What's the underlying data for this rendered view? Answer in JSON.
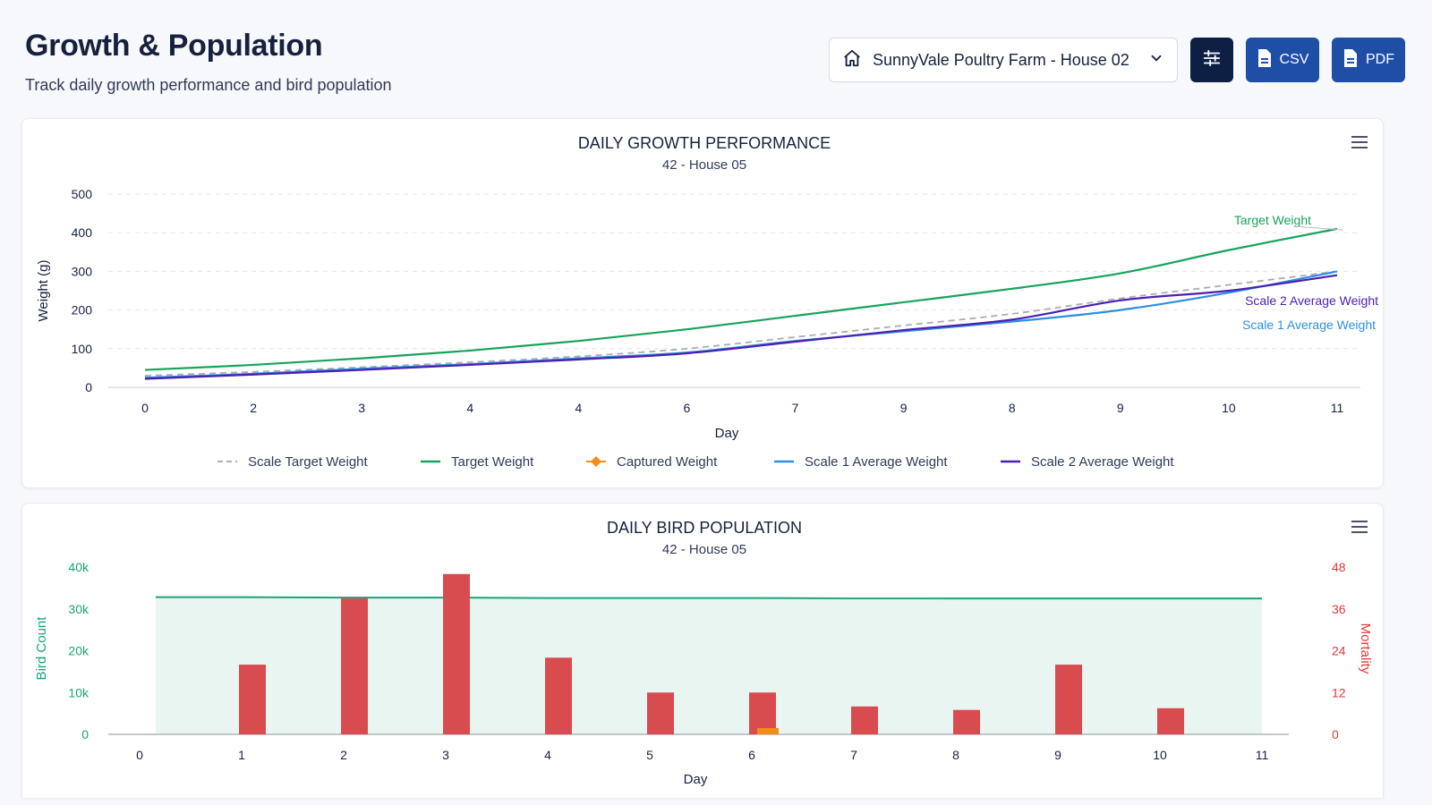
{
  "header": {
    "title": "Growth & Population",
    "subtitle": "Track daily growth performance and bird population"
  },
  "toolbar": {
    "farm_select": "SunnyVale Poultry Farm - House 02",
    "csv_label": "CSV",
    "pdf_label": "PDF"
  },
  "colors": {
    "target": "#17a35a",
    "scale_target": "#a9adb6",
    "captured": "#f28c1b",
    "scale1": "#2f8fe0",
    "scale2": "#4b1fb0",
    "bars": "#d84b4f",
    "bird_line": "#1aa37a",
    "bird_area": "#e8f5f0",
    "mortality_axis": "#e03a3a"
  },
  "chart_data": [
    {
      "type": "line",
      "title": "DAILY GROWTH PERFORMANCE",
      "subtitle": "42 - House 05",
      "xlabel": "Day",
      "ylabel": "Weight (g)",
      "x_tick_labels": [
        "0",
        "2",
        "3",
        "4",
        "4",
        "6",
        "7",
        "9",
        "8",
        "9",
        "10",
        "11"
      ],
      "y_ticks": [
        0,
        100,
        200,
        300,
        400,
        500
      ],
      "ylim": [
        0,
        500
      ],
      "grid": "horizontal-dashed",
      "legend_position": "bottom",
      "series": [
        {
          "key": "scale_target",
          "name": "Scale Target Weight",
          "style": "dashed",
          "values": [
            30,
            40,
            52,
            65,
            80,
            100,
            130,
            160,
            190,
            230,
            265,
            300
          ]
        },
        {
          "key": "target",
          "name": "Target Weight",
          "style": "solid",
          "values": [
            45,
            58,
            75,
            95,
            120,
            150,
            185,
            220,
            255,
            295,
            355,
            410
          ],
          "end_label": "Target Weight"
        },
        {
          "key": "captured",
          "name": "Captured Weight",
          "style": "marker",
          "values": []
        },
        {
          "key": "scale1",
          "name": "Scale 1 Average Weight",
          "style": "solid",
          "values": [
            25,
            35,
            48,
            60,
            75,
            90,
            120,
            145,
            170,
            200,
            245,
            300
          ],
          "end_label": "Scale 1 Average Weight"
        },
        {
          "key": "scale2",
          "name": "Scale 2 Average Weight",
          "style": "solid",
          "values": [
            22,
            33,
            45,
            58,
            72,
            88,
            118,
            148,
            175,
            225,
            250,
            290
          ],
          "end_label": "Scale 2 Average Weight"
        }
      ]
    },
    {
      "type": "bar",
      "title": "DAILY BIRD POPULATION",
      "subtitle": "42 - House 05",
      "xlabel": "Day",
      "ylabel_left": "Bird Count",
      "ylabel_right": "Mortality",
      "x_tick_labels": [
        "0",
        "1",
        "2",
        "3",
        "4",
        "5",
        "6",
        "7",
        "8",
        "9",
        "10",
        "11"
      ],
      "y_left_ticks": [
        "0",
        "10k",
        "20k",
        "30k",
        "40k"
      ],
      "y_left_lim": [
        0,
        40000
      ],
      "y_right_ticks": [
        "0",
        "12",
        "24",
        "36",
        "48"
      ],
      "y_right_lim": [
        0,
        48
      ],
      "bird_count": [
        32800,
        32800,
        32700,
        32700,
        32600,
        32600,
        32600,
        32500,
        32500,
        32500,
        32500,
        32500
      ],
      "mortality": [
        0,
        20,
        39,
        46,
        22,
        12,
        12,
        8,
        7,
        20,
        7.5,
        0
      ],
      "captured_small": {
        "day": 6,
        "value": 1.8
      }
    }
  ]
}
